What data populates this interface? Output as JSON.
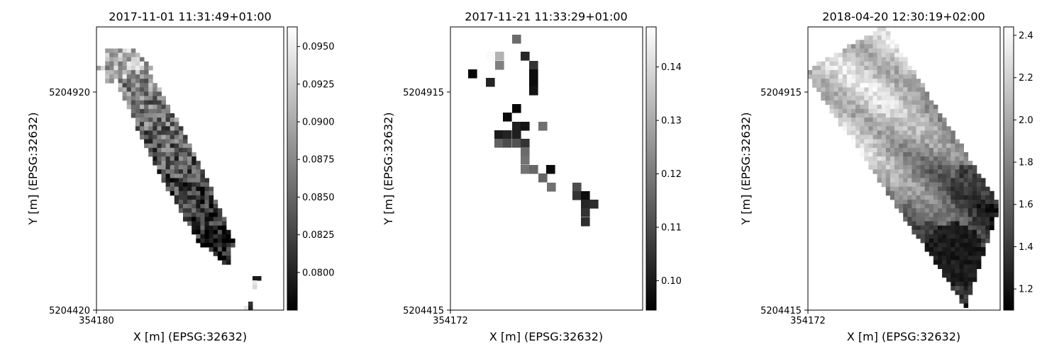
{
  "chart_data": [
    {
      "type": "heatmap",
      "title": "2017-11-01 11:31:49+01:00",
      "xlabel": "X [m] (EPSG:32632)",
      "ylabel": "Y [m] (EPSG:32632)",
      "x_ticks": [
        "354180"
      ],
      "y_ticks": [
        "5204920",
        "5204420"
      ],
      "colorbar": {
        "min": 0.0775,
        "max": 0.0963,
        "ticks": [
          "0.0800",
          "0.0825",
          "0.0850",
          "0.0875",
          "0.0900",
          "0.0925",
          "0.0950"
        ],
        "tick_values": [
          0.08,
          0.0825,
          0.085,
          0.0875,
          0.09,
          0.0925,
          0.095
        ]
      },
      "cmap": "gray"
    },
    {
      "type": "heatmap",
      "title": "2017-11-21 11:33:29+01:00",
      "xlabel": "X [m] (EPSG:32632)",
      "ylabel": "Y [m] (EPSG:32632)",
      "x_ticks": [
        "354172"
      ],
      "y_ticks": [
        "5204915",
        "5204415"
      ],
      "colorbar": {
        "min": 0.0945,
        "max": 0.1475,
        "ticks": [
          "0.10",
          "0.11",
          "0.12",
          "0.13",
          "0.14"
        ],
        "tick_values": [
          0.1,
          0.11,
          0.12,
          0.13,
          0.14
        ]
      },
      "cmap": "gray"
    },
    {
      "type": "heatmap",
      "title": "2018-04-20 12:30:19+02:00",
      "xlabel": "X [m] (EPSG:32632)",
      "ylabel": "Y [m] (EPSG:32632)",
      "x_ticks": [
        "354172"
      ],
      "y_ticks": [
        "5204915",
        "5204415"
      ],
      "colorbar": {
        "min": 1.1,
        "max": 2.44,
        "ticks": [
          "1.2",
          "1.4",
          "1.6",
          "1.8",
          "2.0",
          "2.2",
          "2.4"
        ],
        "tick_values": [
          1.2,
          1.4,
          1.6,
          1.8,
          2.0,
          2.2,
          2.4
        ]
      },
      "cmap": "gray"
    }
  ]
}
